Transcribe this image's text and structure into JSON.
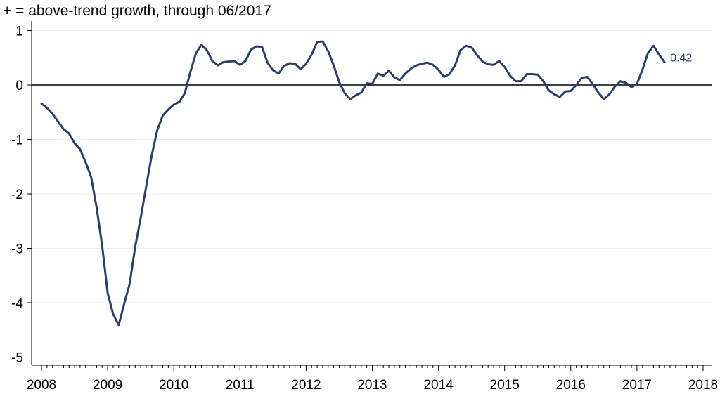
{
  "chart_data": {
    "type": "line",
    "title": "+ = above-trend growth, through 06/2017",
    "xlabel": "",
    "ylabel": "",
    "xlim": [
      2008.0,
      2018.0
    ],
    "ylim": [
      -5,
      1
    ],
    "xticks": [
      2008,
      2009,
      2010,
      2011,
      2012,
      2013,
      2014,
      2015,
      2016,
      2017,
      2018
    ],
    "xtick_labels": [
      "2008",
      "2009",
      "2010",
      "2011",
      "2012",
      "2013",
      "2014",
      "2015",
      "2016",
      "2017",
      "2018"
    ],
    "yticks": [
      1,
      0,
      -1,
      -2,
      -3,
      -4,
      -5
    ],
    "ytick_labels": [
      "1",
      "0",
      "-1",
      "-2",
      "-3",
      "-4",
      "-5"
    ],
    "grid": "horizontal",
    "zero_line": true,
    "line_color": "#2b3f6b",
    "end_label": "0.42",
    "series": [
      {
        "start": "2008-01",
        "frequency": "monthly",
        "end": "2017-06",
        "values": [
          -0.34,
          -0.42,
          -0.53,
          -0.67,
          -0.81,
          -0.89,
          -1.07,
          -1.18,
          -1.42,
          -1.69,
          -2.25,
          -2.95,
          -3.82,
          -4.21,
          -4.41,
          -4.02,
          -3.65,
          -2.97,
          -2.44,
          -1.86,
          -1.29,
          -0.83,
          -0.56,
          -0.45,
          -0.36,
          -0.31,
          -0.15,
          0.24,
          0.58,
          0.74,
          0.64,
          0.44,
          0.36,
          0.42,
          0.43,
          0.44,
          0.37,
          0.44,
          0.65,
          0.71,
          0.7,
          0.41,
          0.27,
          0.21,
          0.35,
          0.4,
          0.39,
          0.29,
          0.39,
          0.56,
          0.79,
          0.8,
          0.62,
          0.36,
          0.05,
          -0.15,
          -0.26,
          -0.19,
          -0.14,
          0.03,
          0.02,
          0.21,
          0.17,
          0.26,
          0.14,
          0.09,
          0.21,
          0.3,
          0.36,
          0.39,
          0.41,
          0.37,
          0.28,
          0.15,
          0.2,
          0.36,
          0.64,
          0.72,
          0.69,
          0.55,
          0.43,
          0.38,
          0.37,
          0.44,
          0.33,
          0.17,
          0.07,
          0.07,
          0.2,
          0.2,
          0.19,
          0.07,
          -0.1,
          -0.17,
          -0.22,
          -0.12,
          -0.11,
          0.0,
          0.13,
          0.15,
          0.01,
          -0.14,
          -0.26,
          -0.17,
          -0.03,
          0.07,
          0.04,
          -0.04,
          0.02,
          0.28,
          0.59,
          0.72,
          0.56,
          0.42
        ]
      }
    ]
  }
}
